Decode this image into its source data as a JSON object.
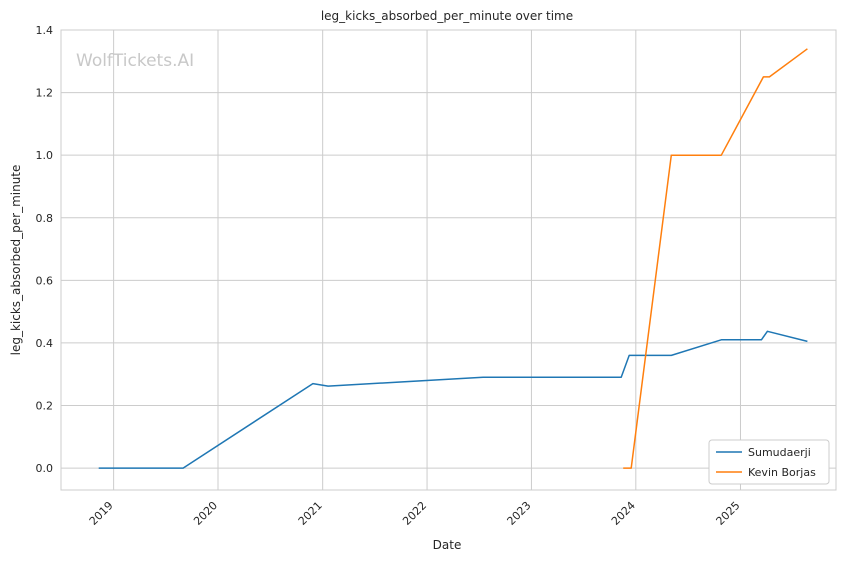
{
  "watermark": "WolfTickets.AI",
  "chart_data": {
    "type": "line",
    "title": "leg_kicks_absorbed_per_minute over time",
    "xlabel": "Date",
    "ylabel": "leg_kicks_absorbed_per_minute",
    "x_axis": "date",
    "xlim": [
      "2018-07-01",
      "2025-12-01"
    ],
    "ylim": [
      -0.07,
      1.4
    ],
    "x_ticks": [
      {
        "date": "2019-01-01",
        "label": "2019"
      },
      {
        "date": "2020-01-01",
        "label": "2020"
      },
      {
        "date": "2021-01-01",
        "label": "2021"
      },
      {
        "date": "2022-01-01",
        "label": "2022"
      },
      {
        "date": "2023-01-01",
        "label": "2023"
      },
      {
        "date": "2024-01-01",
        "label": "2024"
      },
      {
        "date": "2025-01-01",
        "label": "2025"
      }
    ],
    "y_ticks": [
      {
        "value": 0.0,
        "label": "0.0"
      },
      {
        "value": 0.2,
        "label": "0.2"
      },
      {
        "value": 0.4,
        "label": "0.4"
      },
      {
        "value": 0.6,
        "label": "0.6"
      },
      {
        "value": 0.8,
        "label": "0.8"
      },
      {
        "value": 1.0,
        "label": "1.0"
      },
      {
        "value": 1.2,
        "label": "1.2"
      },
      {
        "value": 1.4,
        "label": "1.4"
      }
    ],
    "grid": true,
    "legend_position": "bottom-right",
    "series": [
      {
        "name": "Sumudaerji",
        "color": "#1f77b4",
        "points": [
          {
            "x": "2018-11-10",
            "y": 0.0
          },
          {
            "x": "2019-09-01",
            "y": 0.0
          },
          {
            "x": "2020-11-28",
            "y": 0.27
          },
          {
            "x": "2021-01-20",
            "y": 0.262
          },
          {
            "x": "2022-07-16",
            "y": 0.29
          },
          {
            "x": "2023-11-11",
            "y": 0.29
          },
          {
            "x": "2023-12-09",
            "y": 0.36
          },
          {
            "x": "2024-05-04",
            "y": 0.36
          },
          {
            "x": "2024-10-26",
            "y": 0.41
          },
          {
            "x": "2025-03-15",
            "y": 0.41
          },
          {
            "x": "2025-04-05",
            "y": 0.437
          },
          {
            "x": "2025-08-23",
            "y": 0.405
          }
        ]
      },
      {
        "name": "Kevin Borjas",
        "color": "#ff7f0e",
        "points": [
          {
            "x": "2023-11-18",
            "y": 0.0
          },
          {
            "x": "2023-12-16",
            "y": 0.0
          },
          {
            "x": "2024-05-04",
            "y": 1.0
          },
          {
            "x": "2024-10-26",
            "y": 1.0
          },
          {
            "x": "2025-03-22",
            "y": 1.25
          },
          {
            "x": "2025-04-12",
            "y": 1.25
          },
          {
            "x": "2025-08-23",
            "y": 1.34
          }
        ]
      }
    ]
  }
}
